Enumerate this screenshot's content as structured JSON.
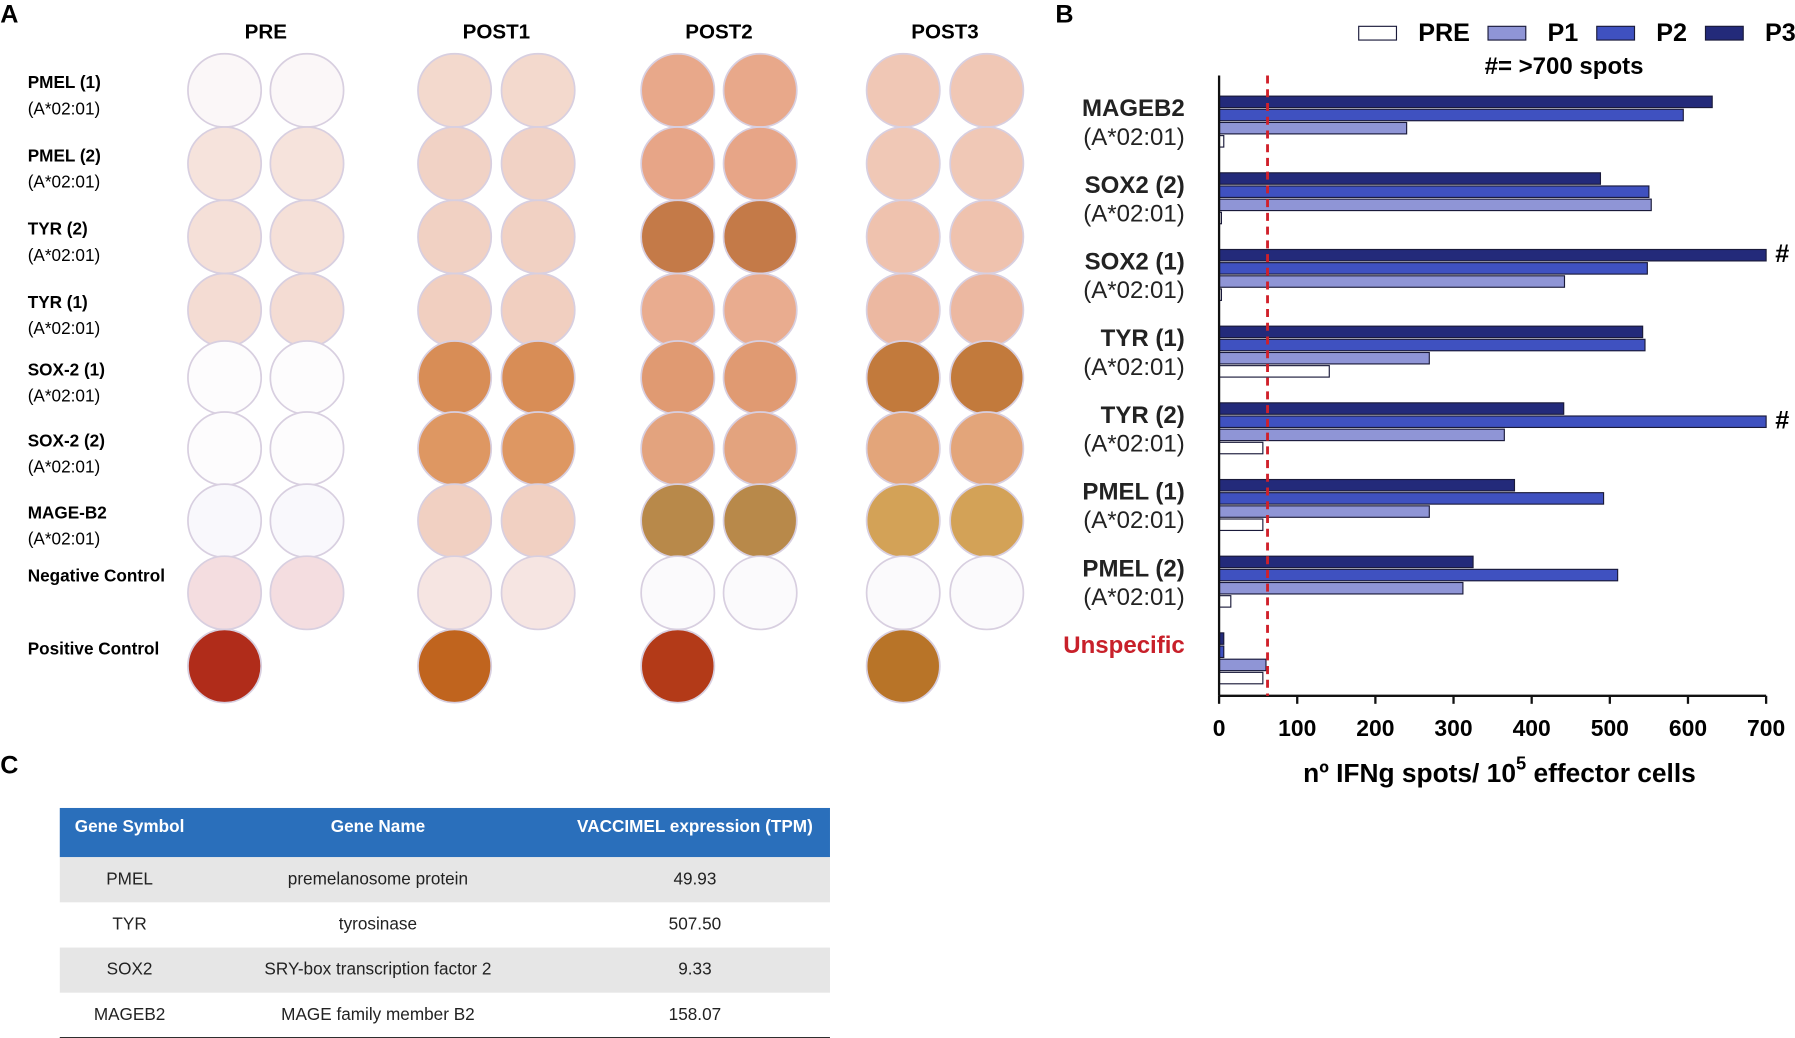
{
  "panel_labels": [
    "A",
    "B",
    "C"
  ],
  "panel_a": {
    "columns": [
      "PRE",
      "POST1",
      "POST2",
      "POST3"
    ],
    "rows": [
      [
        "PMEL (1)",
        "(A*02:01)"
      ],
      [
        "PMEL (2)",
        "(A*02:01)"
      ],
      [
        "TYR (2)",
        "(A*02:01)"
      ],
      [
        "TYR (1)",
        "(A*02:01)"
      ],
      [
        "SOX-2 (1)",
        "(A*02:01)"
      ],
      [
        "SOX-2 (2)",
        "(A*02:01)"
      ],
      [
        "MAGE-B2",
        "(A*02:01)"
      ],
      [
        "Negative Control"
      ],
      [
        "Positive Control"
      ]
    ]
  },
  "chart_data": {
    "type": "barh",
    "categories": [
      [
        "MAGEB2",
        "(A*02:01)"
      ],
      [
        "SOX2 (2)",
        "(A*02:01)"
      ],
      [
        "SOX2 (1)",
        "(A*02:01)"
      ],
      [
        "TYR (1)",
        "(A*02:01)"
      ],
      [
        "TYR (2)",
        "(A*02:01)"
      ],
      [
        "PMEL (1)",
        "(A*02:01)"
      ],
      [
        "PMEL (2)",
        "(A*02:01)"
      ],
      [
        "Unspecific"
      ]
    ],
    "series": [
      {
        "name": "PRE",
        "color": "#ffffff",
        "values": [
          6,
          3,
          3,
          141,
          56,
          56,
          15,
          56
        ]
      },
      {
        "name": "P1",
        "color": "#8f95d6",
        "values": [
          240,
          553,
          442,
          269,
          365,
          269,
          312,
          60
        ]
      },
      {
        "name": "P2",
        "color": "#3f51c0",
        "values": [
          594,
          550,
          548,
          545,
          700,
          492,
          510,
          6
        ]
      },
      {
        "name": "P3",
        "color": "#232a7a",
        "values": [
          631,
          488,
          700,
          542,
          441,
          378,
          325,
          6
        ]
      }
    ],
    "xlim": [
      0,
      700
    ],
    "xticks": [
      0,
      100,
      200,
      300,
      400,
      500,
      600,
      700
    ],
    "xlabel": [
      "nº IFNg spots/ 10",
      "5",
      " effector cells"
    ],
    "reference_line": {
      "value": 62,
      "color": "#d0202a"
    },
    "unspecific_color": "#c8202a",
    "note": "#= >700 spots",
    "annotations": [
      {
        "text": "#",
        "category": 2,
        "series": 3
      },
      {
        "text": "#",
        "category": 4,
        "series": 2
      }
    ]
  },
  "table": {
    "header": [
      "Gene Symbol",
      "Gene Name",
      "VACCIMEL expression (TPM)"
    ],
    "rows": [
      [
        "PMEL",
        "premelanosome protein",
        "49.93"
      ],
      [
        "TYR",
        "tyrosinase",
        "507.50"
      ],
      [
        "SOX2",
        "SRY-box transcription factor 2",
        "9.33"
      ],
      [
        "MAGEB2",
        "MAGE family member B2",
        "158.07"
      ]
    ]
  }
}
